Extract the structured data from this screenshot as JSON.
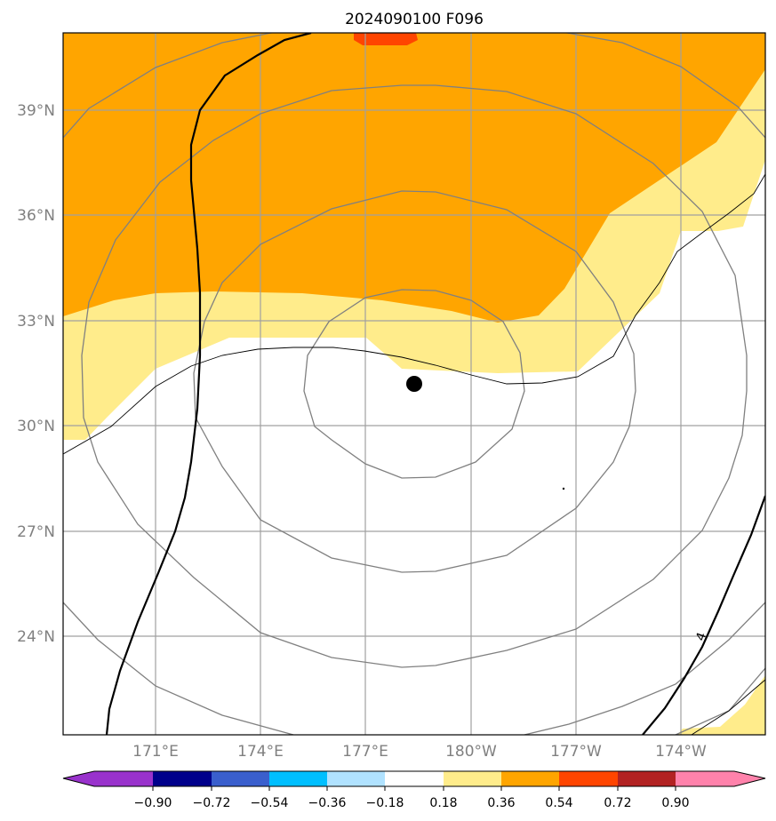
{
  "title": "2024090100 F096",
  "map": {
    "lat_labels": [
      "39°N",
      "36°N",
      "33°N",
      "30°N",
      "27°N",
      "24°N"
    ],
    "lon_labels": [
      "171°E",
      "174°E",
      "177°E",
      "180°W",
      "177°W",
      "174°W"
    ],
    "contour_label": "4",
    "storm_center": {
      "lon": 178.4,
      "lat": 31.2
    }
  },
  "colorbar": {
    "tick_labels": [
      "−0.90",
      "−0.72",
      "−0.54",
      "−0.36",
      "−0.18",
      "0.18",
      "0.36",
      "0.54",
      "0.72",
      "0.90"
    ],
    "colors": [
      "#9932CC",
      "#00008B",
      "#3A5FCD",
      "#00BFFF",
      "#B0E2FF",
      "#FFFFFF",
      "#FFEC8B",
      "#FFA500",
      "#FF4500",
      "#B22222",
      "#FF82AB"
    ]
  },
  "colors": {
    "fill_light": "#FFEC8B",
    "fill_mid": "#FFA500",
    "fill_high": "#FF4500",
    "grid": "#A0A0A0",
    "contour_thin": "#808080",
    "contour_thick": "#000000"
  }
}
